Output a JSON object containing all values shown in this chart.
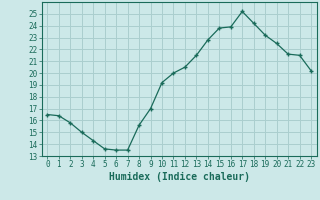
{
  "x": [
    0,
    1,
    2,
    3,
    4,
    5,
    6,
    7,
    8,
    9,
    10,
    11,
    12,
    13,
    14,
    15,
    16,
    17,
    18,
    19,
    20,
    21,
    22,
    23
  ],
  "y": [
    16.5,
    16.4,
    15.8,
    15.0,
    14.3,
    13.6,
    13.5,
    13.5,
    15.6,
    17.0,
    19.2,
    20.0,
    20.5,
    21.5,
    22.8,
    23.8,
    23.9,
    25.2,
    24.2,
    23.2,
    22.5,
    21.6,
    21.5,
    20.2
  ],
  "xlabel": "Humidex (Indice chaleur)",
  "ylim": [
    13,
    26
  ],
  "yticks": [
    13,
    14,
    15,
    16,
    17,
    18,
    19,
    20,
    21,
    22,
    23,
    24,
    25
  ],
  "xticks": [
    0,
    1,
    2,
    3,
    4,
    5,
    6,
    7,
    8,
    9,
    10,
    11,
    12,
    13,
    14,
    15,
    16,
    17,
    18,
    19,
    20,
    21,
    22,
    23
  ],
  "line_color": "#1a6b5a",
  "marker": "+",
  "bg_color": "#cce8e8",
  "grid_color": "#aacece",
  "label_color": "#1a6b5a",
  "tick_color": "#1a6b5a",
  "tick_fontsize": 5.5,
  "xlabel_fontsize": 7.0
}
